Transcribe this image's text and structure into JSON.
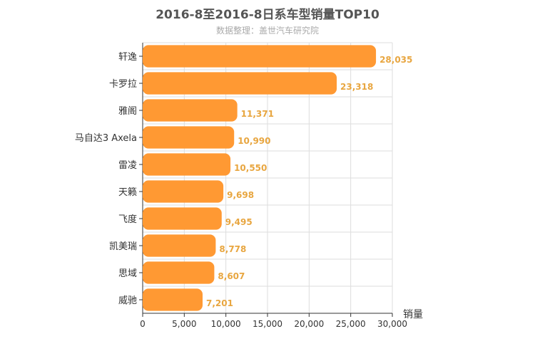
{
  "chart_data": {
    "type": "bar",
    "orientation": "horizontal",
    "title": "2016-8至2016-8日系车型销量TOP10",
    "subtitle": "数据整理：盖世汽车研究院",
    "xlabel": "销量",
    "ylabel": "",
    "xlim": [
      0,
      30000
    ],
    "x_ticks": [
      "0",
      "5,000",
      "10,000",
      "15,000",
      "20,000",
      "25,000",
      "30,000"
    ],
    "grid": true,
    "categories": [
      "轩逸",
      "卡罗拉",
      "雅阁",
      "马自达3 Axela",
      "雷凌",
      "天籁",
      "飞度",
      "凯美瑞",
      "思域",
      "威驰"
    ],
    "values": [
      28035,
      23318,
      11371,
      10990,
      10550,
      9698,
      9495,
      8778,
      8607,
      7201
    ],
    "value_labels": [
      "28,035",
      "23,318",
      "11,371",
      "10,990",
      "10,550",
      "9,698",
      "9,495",
      "8,778",
      "8,607",
      "7,201"
    ],
    "bar_color": "#ff9933",
    "label_color": "#e8a640"
  }
}
